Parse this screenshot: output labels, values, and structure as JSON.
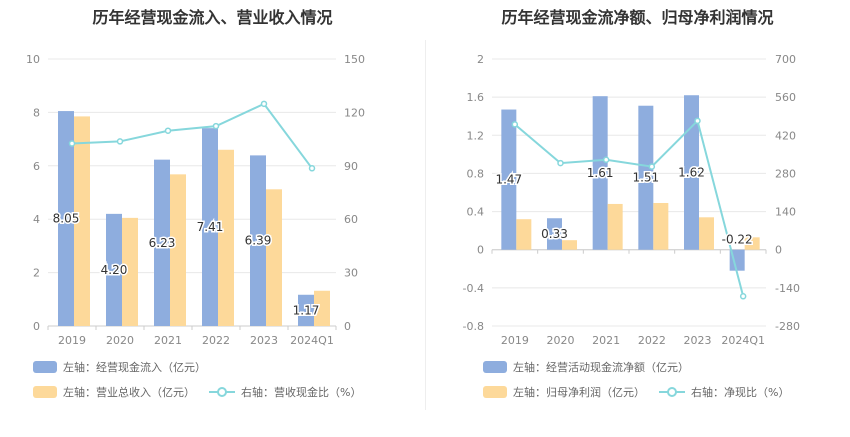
{
  "chart_data": [
    {
      "type": "bar",
      "title": "历年经营现金流入、营业收入情况",
      "categories": [
        "2019",
        "2020",
        "2021",
        "2022",
        "2023",
        "2024Q1"
      ],
      "left_axis": {
        "ylim": [
          0,
          10
        ],
        "ticks": [
          "0",
          "2",
          "4",
          "6",
          "8",
          "10"
        ]
      },
      "right_axis": {
        "ylim": [
          0,
          150
        ],
        "ticks": [
          "0",
          "30",
          "60",
          "90",
          "120",
          "150"
        ]
      },
      "grid": true,
      "legend_position": "bottom-left",
      "series": [
        {
          "name": "左轴：经营现金流入（亿元）",
          "kind": "bar",
          "axis": "left",
          "color": "#8eadde",
          "values": [
            8.05,
            4.2,
            6.23,
            7.41,
            6.39,
            1.17
          ],
          "data_labels": [
            "8.05",
            "4.20",
            "6.23",
            "7.41",
            "6.39",
            "1.17"
          ]
        },
        {
          "name": "左轴：营业总收入（亿元）",
          "kind": "bar",
          "axis": "left",
          "color": "#fdd99a",
          "values": [
            7.85,
            4.05,
            5.68,
            6.6,
            5.12,
            1.32
          ]
        },
        {
          "name": "右轴：营收现金比（%）",
          "kind": "line",
          "axis": "right",
          "color": "#86d7dc",
          "values": [
            102.5,
            103.7,
            109.7,
            112.3,
            124.8,
            88.6
          ]
        }
      ]
    },
    {
      "type": "bar",
      "title": "历年经营现金流净额、归母净利润情况",
      "categories": [
        "2019",
        "2020",
        "2021",
        "2022",
        "2023",
        "2024Q1"
      ],
      "left_axis": {
        "ylim": [
          -0.8,
          2
        ],
        "ticks": [
          "-0.8",
          "-0.4",
          "0",
          "0.4",
          "0.8",
          "1.2",
          "1.6",
          "2"
        ]
      },
      "right_axis": {
        "ylim": [
          -280,
          700
        ],
        "ticks": [
          "-280",
          "-140",
          "0",
          "140",
          "280",
          "420",
          "560",
          "700"
        ]
      },
      "grid": true,
      "legend_position": "bottom-left",
      "series": [
        {
          "name": "左轴：经营活动现金流净额（亿元）",
          "kind": "bar",
          "axis": "left",
          "color": "#8eadde",
          "values": [
            1.47,
            0.33,
            1.61,
            1.51,
            1.62,
            -0.22
          ],
          "data_labels": [
            "1.47",
            "0.33",
            "1.61",
            "1.51",
            "1.62",
            "-0.22"
          ]
        },
        {
          "name": "左轴：归母净利润（亿元）",
          "kind": "bar",
          "axis": "left",
          "color": "#fdd99a",
          "values": [
            0.32,
            0.1,
            0.48,
            0.49,
            0.34,
            0.13
          ]
        },
        {
          "name": "右轴：净现比（%）",
          "kind": "line",
          "axis": "right",
          "color": "#86d7dc",
          "values": [
            460,
            318,
            330,
            305,
            473,
            -171
          ]
        }
      ]
    }
  ]
}
